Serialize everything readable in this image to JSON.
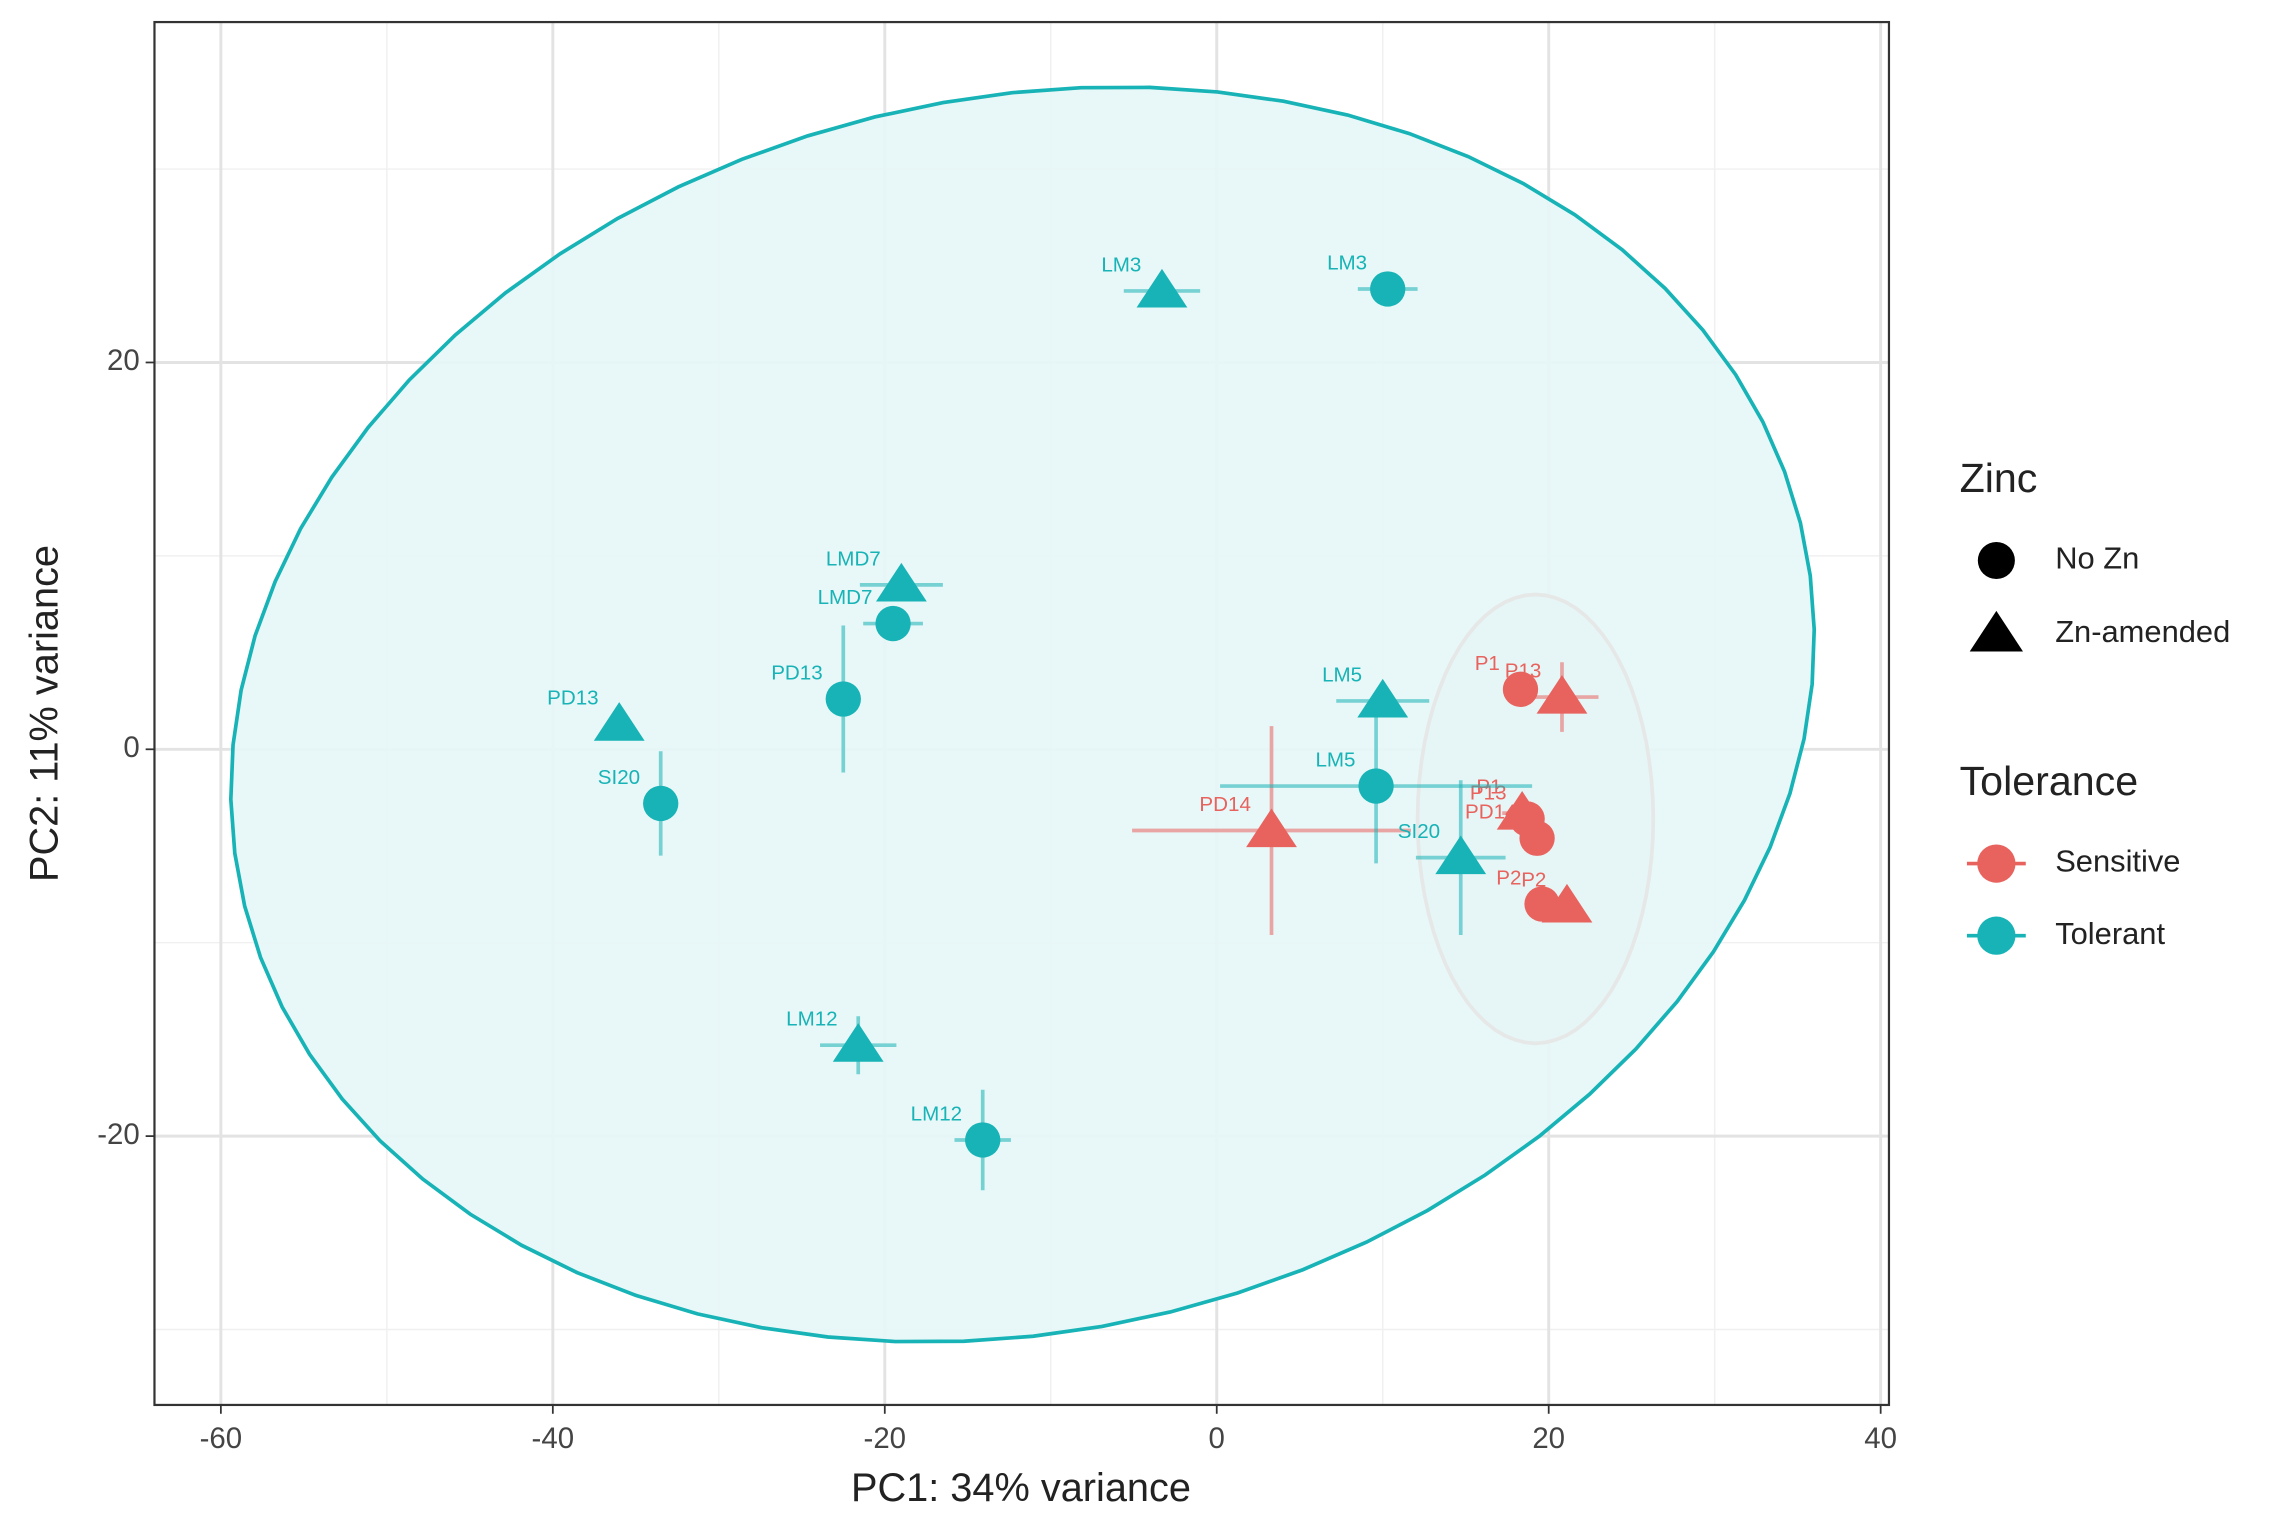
{
  "chart_data": {
    "type": "scatter",
    "x_label": "PC1: 34% variance",
    "y_label": "PC2: 11% variance",
    "xlim": [
      -64,
      40.5
    ],
    "ylim": [
      -33.9,
      37.6
    ],
    "xticks": [
      -60,
      -40,
      -20,
      0,
      20,
      40
    ],
    "yticks": [
      -20,
      0,
      20
    ],
    "xminor": [
      -50,
      -30,
      -10,
      10,
      30
    ],
    "yminor": [
      -30,
      -10,
      10,
      30
    ],
    "grid": true,
    "legend_position": "right",
    "shape_legend": {
      "title": "Zinc",
      "items": [
        "No Zn",
        "Zn-amended"
      ]
    },
    "color_legend_title": "Tolerance",
    "series": [
      {
        "name": "Sensitive",
        "color": "#e8625e",
        "ellipse_fill": "#e6e6e6",
        "ellipse": {
          "cx": 19.2,
          "cy": -3.6,
          "rx": 7.1,
          "ry": 11.6,
          "angle": 0
        },
        "labels": [
          "P1",
          "P13",
          "P1",
          "P13",
          "PD14",
          "PD14",
          "P2",
          "P2"
        ],
        "zinc": [
          "No Zn",
          "Zn-amended",
          "Zn-amended",
          "No Zn",
          "No Zn",
          "Zn-amended",
          "No Zn",
          "Zn-amended"
        ],
        "x": [
          18.3,
          20.8,
          18.4,
          18.7,
          19.3,
          3.3,
          19.6,
          21.1
        ],
        "y": [
          3.1,
          2.7,
          -3.3,
          -3.6,
          -4.6,
          -4.2,
          -8.0,
          -8.1
        ],
        "xerr": [
          0,
          2.2,
          1.2,
          0,
          0,
          8.4,
          0,
          0
        ],
        "yerr": [
          0,
          1.8,
          0.9,
          0,
          0,
          5.4,
          0,
          0
        ]
      },
      {
        "name": "Tolerant",
        "color": "#17b3b6",
        "ellipse_fill": "#e6f6f6",
        "ellipse": {
          "cx": -11.7,
          "cy": 1.8,
          "rx": 48,
          "ry": 32,
          "angle": 8.6
        },
        "labels": [
          "LM3",
          "LM3",
          "LMD7",
          "LMD7",
          "PD13",
          "PD13",
          "SI20",
          "LM5",
          "LM5",
          "SI20",
          "LM12",
          "LM12"
        ],
        "zinc": [
          "Zn-amended",
          "No Zn",
          "Zn-amended",
          "No Zn",
          "No Zn",
          "Zn-amended",
          "No Zn",
          "Zn-amended",
          "No Zn",
          "Zn-amended",
          "Zn-amended",
          "No Zn"
        ],
        "x": [
          -3.3,
          10.3,
          -19.0,
          -19.5,
          -22.5,
          -36.0,
          -33.5,
          10.0,
          9.6,
          14.7,
          -21.6,
          -14.1
        ],
        "y": [
          23.7,
          23.8,
          8.5,
          6.5,
          2.6,
          1.3,
          -2.8,
          2.5,
          -1.9,
          -5.6,
          -15.3,
          -20.2
        ],
        "xerr": [
          2.3,
          1.8,
          2.5,
          1.8,
          0,
          0,
          0,
          2.8,
          9.4,
          2.7,
          2.3,
          1.7
        ],
        "yerr": [
          0,
          0,
          0,
          0,
          3.8,
          0,
          2.7,
          0,
          4.0,
          4.0,
          1.5,
          2.6
        ]
      }
    ]
  }
}
